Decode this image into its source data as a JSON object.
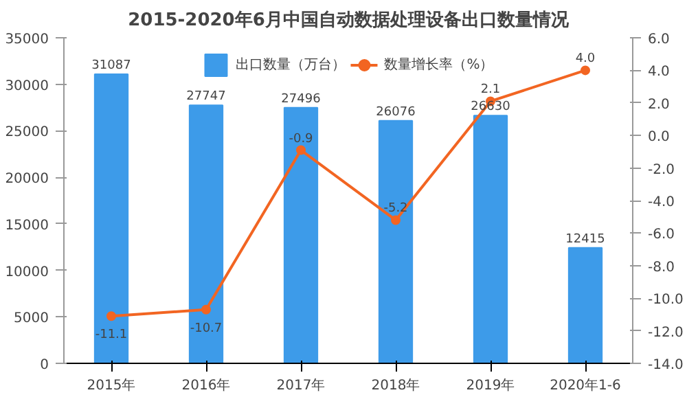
{
  "chart_data": {
    "type": "bar",
    "title": "2015-2020年6月中国自动数据处理设备出口数量情况",
    "categories": [
      "2015年",
      "2016年",
      "2017年",
      "2018年",
      "2019年",
      "2020年1-6"
    ],
    "series": [
      {
        "name": "出口数量（万台）",
        "color": "#3d9be9",
        "values": [
          31087,
          27747,
          27496,
          26076,
          26630,
          12415
        ]
      },
      {
        "name": "数量增长率（%）",
        "color": "#f26522",
        "type": "line",
        "axis": "y2",
        "marker": "circle",
        "values": [
          -11.1,
          -10.7,
          -0.9,
          -5.2,
          2.1,
          4.0
        ],
        "value_labels": [
          "-11.1",
          "-10.7",
          "-0.9",
          "-5.2",
          "2.1",
          "4.0"
        ]
      }
    ],
    "ylim": [
      0,
      35000
    ],
    "yticks": [
      0,
      5000,
      10000,
      15000,
      20000,
      25000,
      30000,
      35000
    ],
    "y2lim": [
      -14,
      6
    ],
    "y2ticks": [
      {
        "value": -14,
        "label": "-14.0"
      },
      {
        "value": -12,
        "label": "-12.0"
      },
      {
        "value": -10,
        "label": "-10.0"
      },
      {
        "value": -8,
        "label": "-8.0"
      },
      {
        "value": -6,
        "label": "-6.0"
      },
      {
        "value": -4,
        "label": "-4.0"
      },
      {
        "value": -2,
        "label": "-2.0"
      },
      {
        "value": 0,
        "label": "0.0"
      },
      {
        "value": 2,
        "label": "2.0"
      },
      {
        "value": 4,
        "label": "4.0"
      },
      {
        "value": 6,
        "label": "6.0"
      }
    ],
    "data_labels": true,
    "legend": "top",
    "grid": false
  }
}
